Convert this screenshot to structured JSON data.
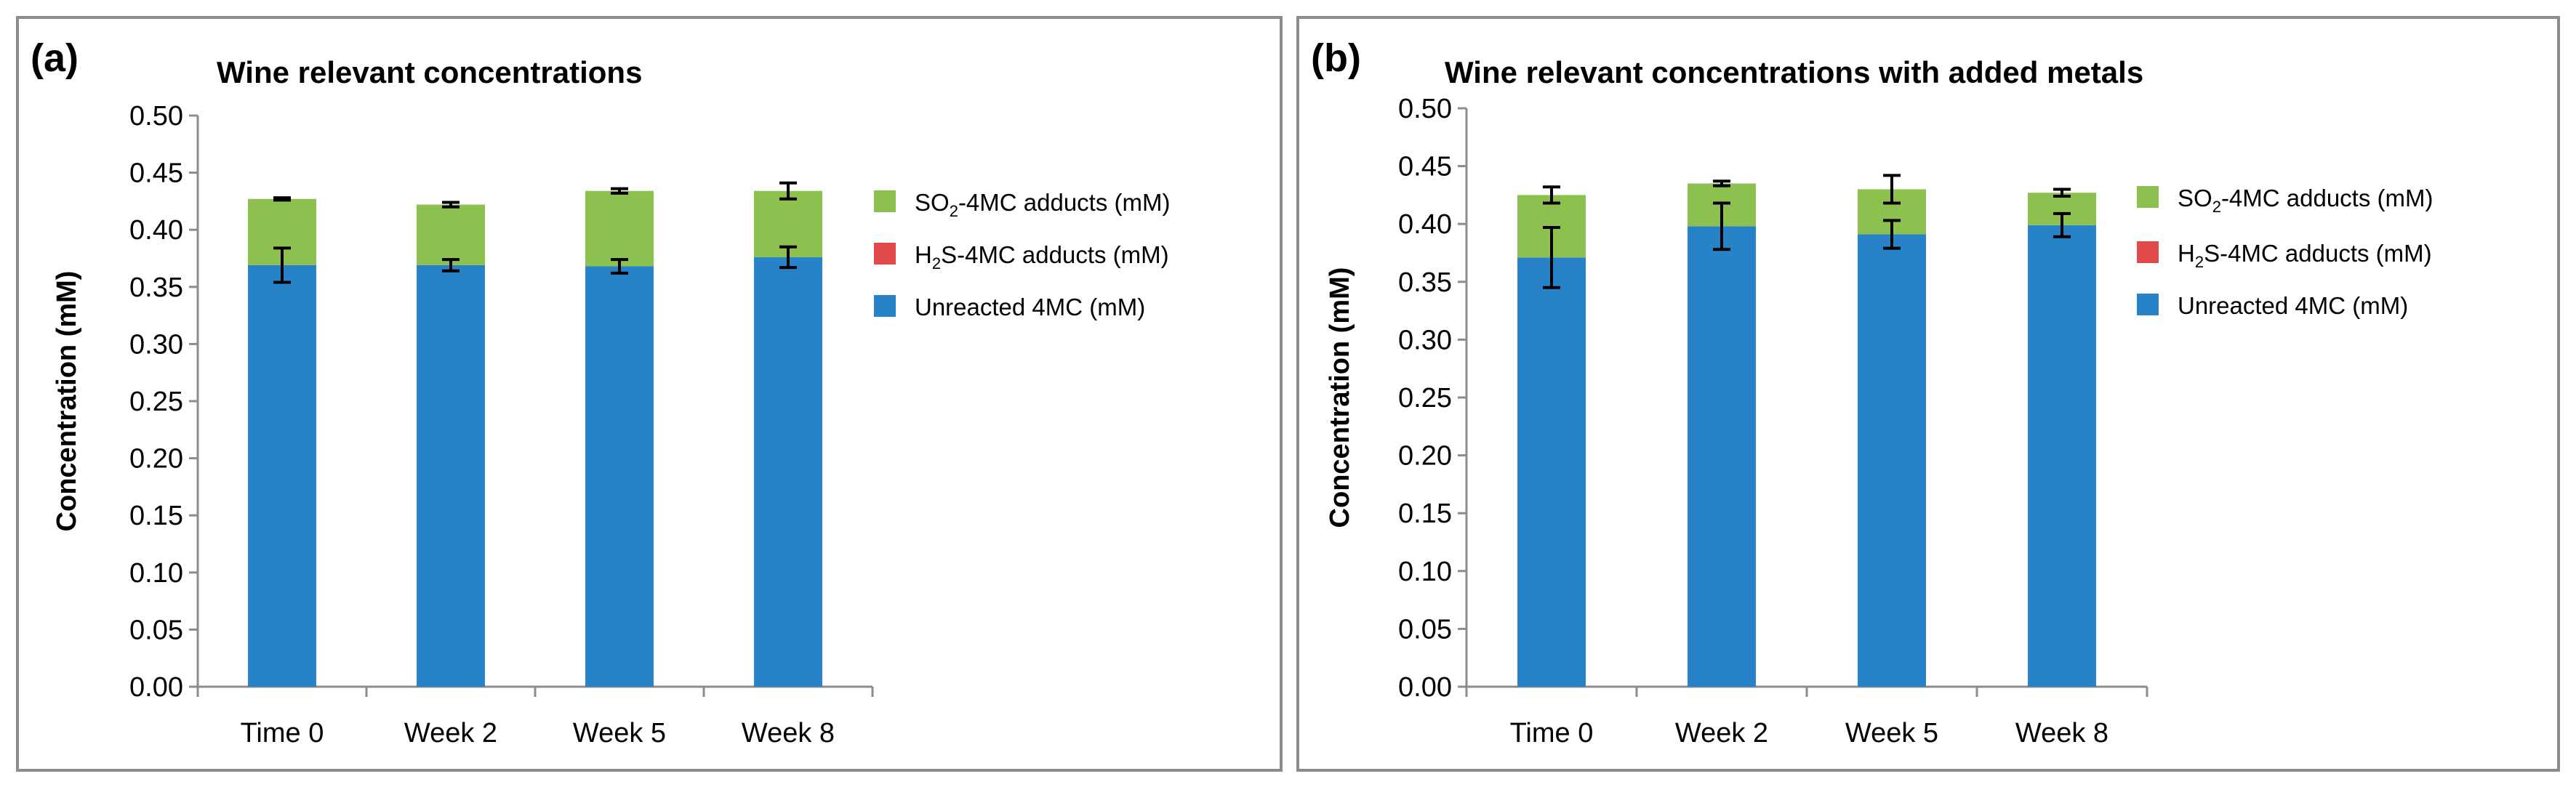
{
  "chart_data": [
    {
      "type": "bar",
      "stacked": true,
      "panel_label": "(a)",
      "title": "Wine relevant concentrations",
      "xlabel": "",
      "ylabel": "Concentration (mM)",
      "ylim": [
        0,
        0.5
      ],
      "yticks": [
        "0.00",
        "0.05",
        "0.10",
        "0.15",
        "0.20",
        "0.25",
        "0.30",
        "0.35",
        "0.40",
        "0.45",
        "0.50"
      ],
      "categories": [
        "Time 0",
        "Week 2",
        "Week 5",
        "Week 8"
      ],
      "grid": false,
      "legend_position": "right",
      "series": [
        {
          "name": "Unreacted 4MC (mM)",
          "color": "#2882c8",
          "values": [
            0.369,
            0.369,
            0.368,
            0.376
          ],
          "errors": [
            0.015,
            0.005,
            0.006,
            0.009
          ]
        },
        {
          "name": "H2S-4MC adducts (mM)",
          "color": "#e04a4a",
          "values": [
            0,
            0,
            0,
            0
          ],
          "errors": [
            null,
            null,
            null,
            null
          ]
        },
        {
          "name": "SO2-4MC adducts (mM)",
          "color": "#8cc150",
          "values": [
            0.058,
            0.053,
            0.066,
            0.058
          ],
          "errors": [
            0.001,
            0.002,
            0.002,
            0.007
          ]
        }
      ],
      "legend": [
        {
          "pre": "SO",
          "sub": "2",
          "post": "-4MC adducts (mM)",
          "color": "#8cc150"
        },
        {
          "pre": "H",
          "sub": "2",
          "post": "S-4MC adducts (mM)",
          "color": "#e04a4a"
        },
        {
          "pre": "Unreacted 4MC (mM)",
          "sub": "",
          "post": "",
          "color": "#2882c8"
        }
      ]
    },
    {
      "type": "bar",
      "stacked": true,
      "panel_label": "(b)",
      "title": "Wine relevant concentrations with added metals",
      "xlabel": "",
      "ylabel": "Concentration (mM)",
      "ylim": [
        0,
        0.5
      ],
      "yticks": [
        "0.00",
        "0.05",
        "0.10",
        "0.15",
        "0.20",
        "0.25",
        "0.30",
        "0.35",
        "0.40",
        "0.45",
        "0.50"
      ],
      "categories": [
        "Time 0",
        "Week 2",
        "Week 5",
        "Week 8"
      ],
      "grid": false,
      "legend_position": "right",
      "series": [
        {
          "name": "Unreacted 4MC (mM)",
          "color": "#2882c8",
          "values": [
            0.371,
            0.398,
            0.391,
            0.399
          ],
          "errors": [
            0.026,
            0.02,
            0.012,
            0.01
          ]
        },
        {
          "name": "H2S-4MC adducts (mM)",
          "color": "#e04a4a",
          "values": [
            0,
            0,
            0,
            0
          ],
          "errors": [
            null,
            null,
            null,
            null
          ]
        },
        {
          "name": "SO2-4MC adducts (mM)",
          "color": "#8cc150",
          "values": [
            0.054,
            0.037,
            0.039,
            0.028
          ],
          "errors": [
            0.007,
            0.002,
            0.012,
            0.003
          ]
        }
      ],
      "legend": [
        {
          "pre": "SO",
          "sub": "2",
          "post": "-4MC adducts (mM)",
          "color": "#8cc150"
        },
        {
          "pre": "H",
          "sub": "2",
          "post": "S-4MC adducts (mM)",
          "color": "#e04a4a"
        },
        {
          "pre": "Unreacted 4MC (mM)",
          "sub": "",
          "post": "",
          "color": "#2882c8"
        }
      ]
    }
  ]
}
